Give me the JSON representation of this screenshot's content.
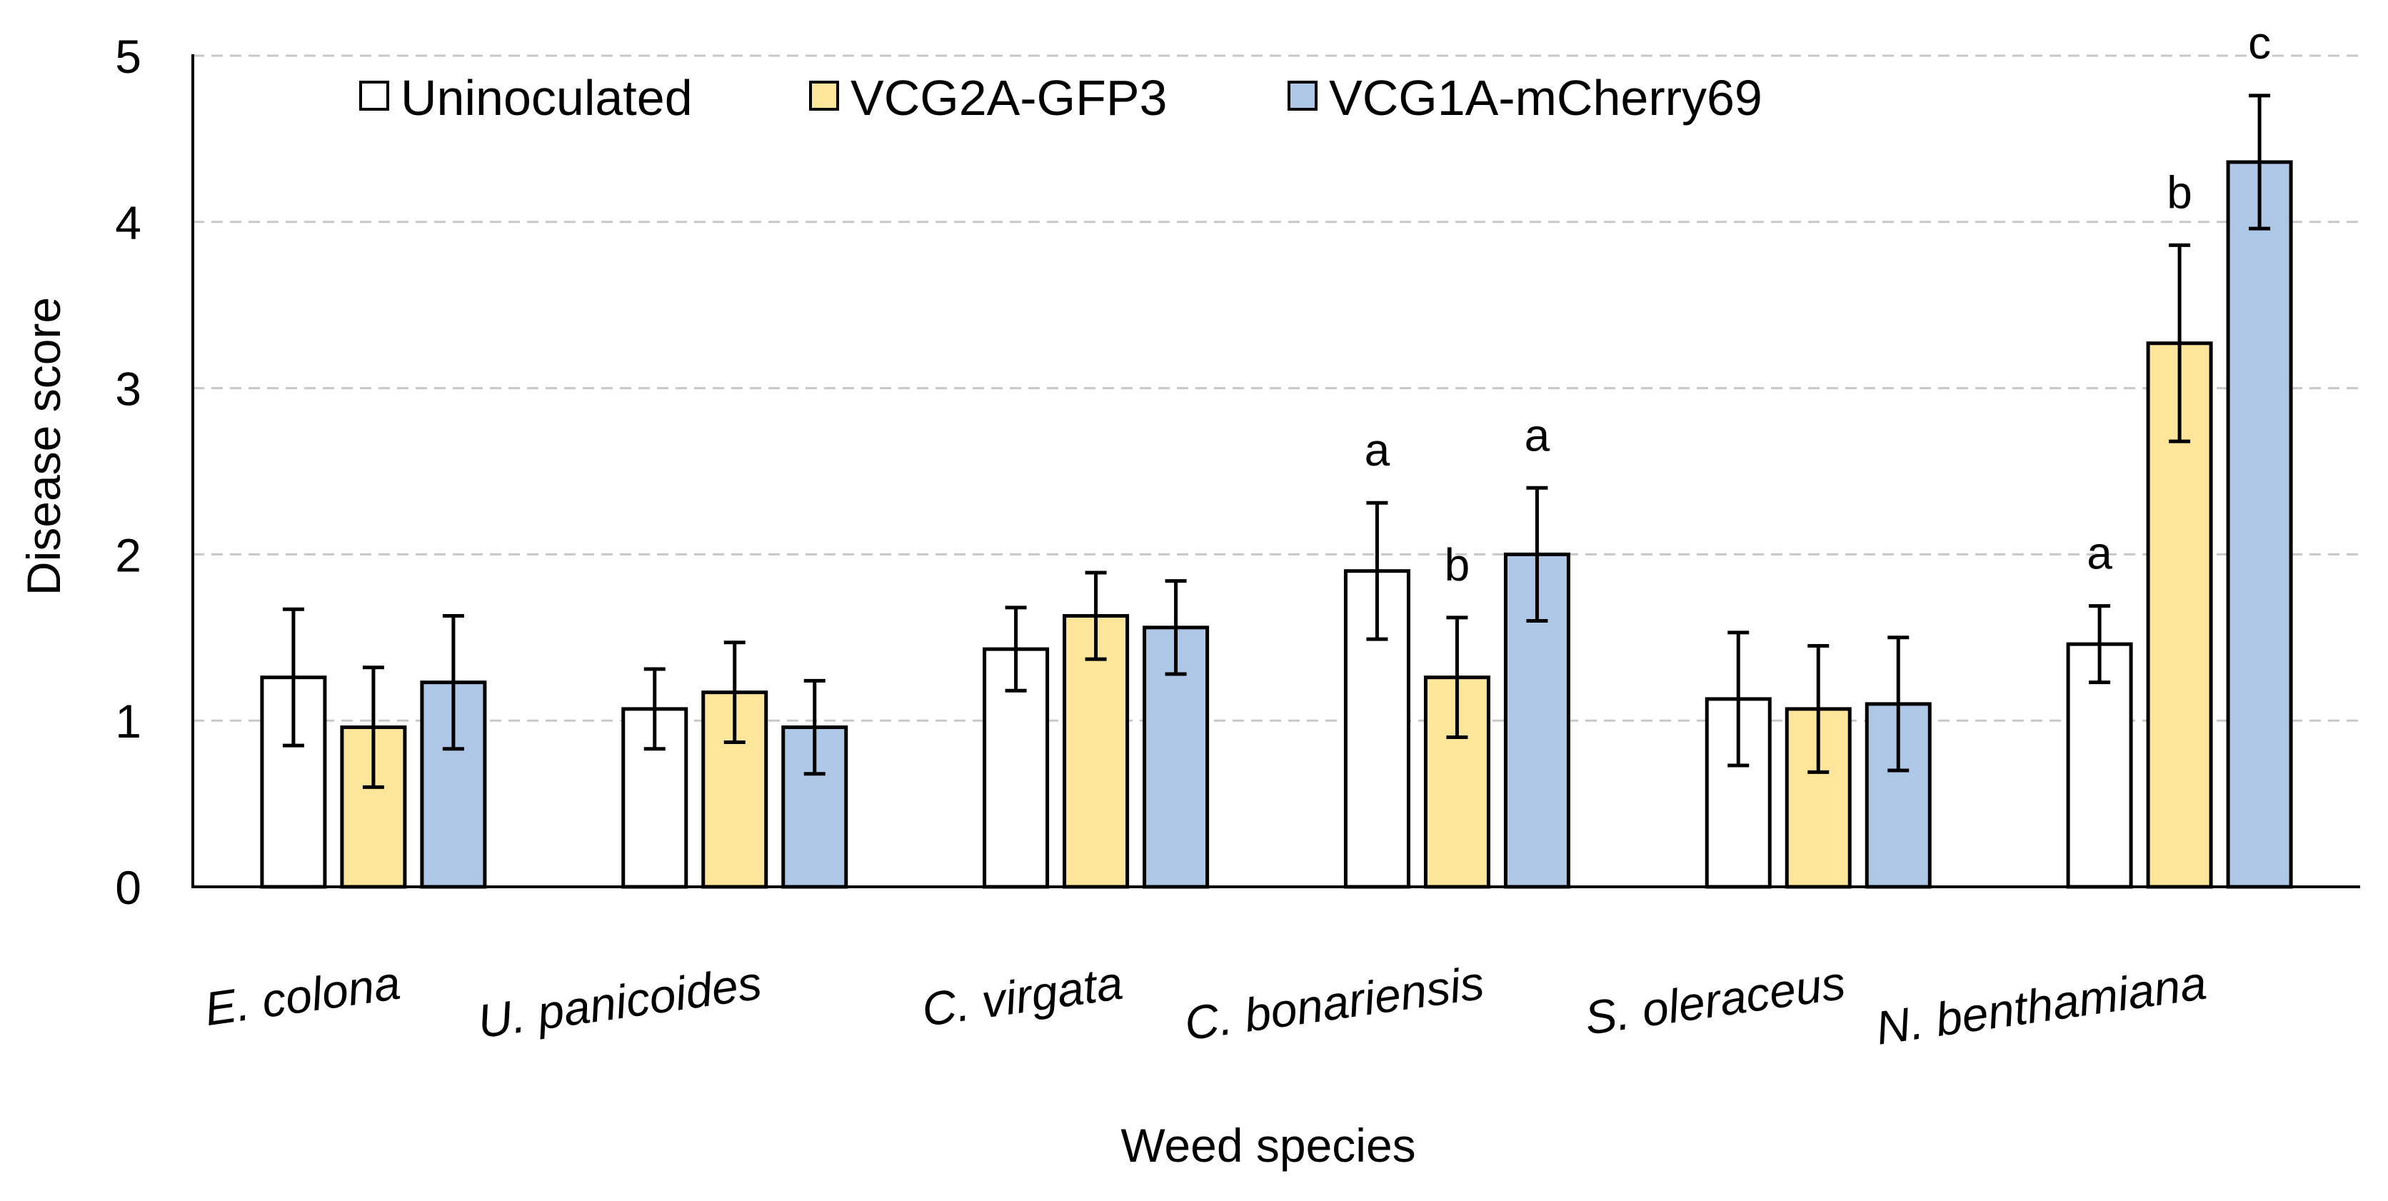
{
  "chart_data": {
    "type": "bar",
    "title": "",
    "xlabel": "Weed species",
    "ylabel": "Disease score",
    "ylim": [
      0,
      5
    ],
    "yticks": [
      "0",
      "1",
      "2",
      "3",
      "4",
      "5"
    ],
    "grid": true,
    "legend_position": "top-left",
    "categories": [
      "E. colona",
      "U. panicoides",
      "C. virgata",
      "C. bonariensis",
      "S. oleraceus",
      "N. benthamiana"
    ],
    "series": [
      {
        "name": "Uninoculated",
        "color": "#ffffff",
        "values": [
          1.26,
          1.07,
          1.43,
          1.9,
          1.13,
          1.46
        ],
        "errors": [
          0.41,
          0.24,
          0.25,
          0.41,
          0.4,
          0.23
        ],
        "labels": [
          "",
          "",
          "",
          "a",
          "",
          "a"
        ]
      },
      {
        "name": "VCG2A-GFP3",
        "color": "#fde59a",
        "values": [
          0.96,
          1.17,
          1.63,
          1.26,
          1.07,
          3.27
        ],
        "errors": [
          0.36,
          0.3,
          0.26,
          0.36,
          0.38,
          0.59
        ],
        "labels": [
          "",
          "",
          "",
          "b",
          "",
          "b"
        ]
      },
      {
        "name": "VCG1A-mCherry69",
        "color": "#aec7e6",
        "values": [
          1.23,
          0.96,
          1.56,
          2.0,
          1.1,
          4.36
        ],
        "errors": [
          0.4,
          0.28,
          0.28,
          0.4,
          0.4,
          0.4
        ],
        "labels": [
          "",
          "",
          "",
          "a",
          "",
          "c"
        ]
      }
    ]
  }
}
